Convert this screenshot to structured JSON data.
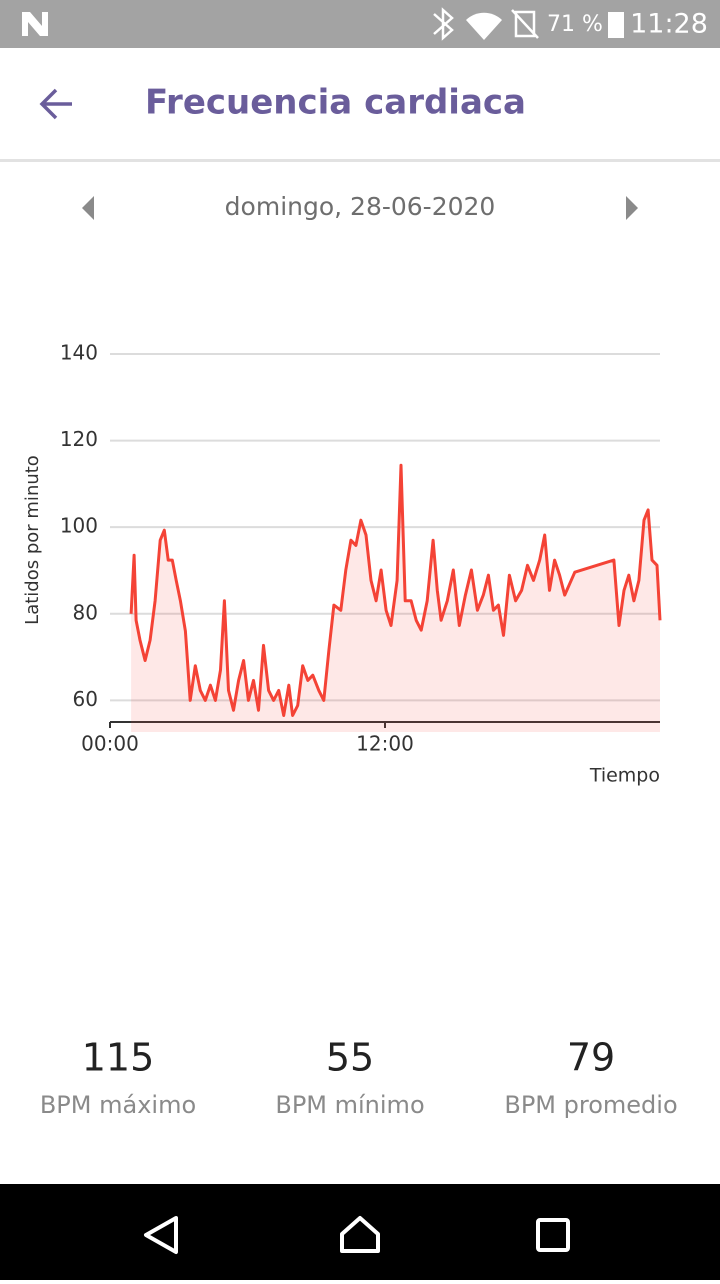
{
  "status_bar": {
    "battery": "71 %",
    "time": "11:28"
  },
  "header": {
    "title": "Frecuencia cardiaca"
  },
  "date_nav": {
    "date": "domingo, 28-06-2020"
  },
  "chart_data": {
    "type": "line",
    "y_label": "Latidos por minuto",
    "x_label": "Tiempo",
    "x": [
      0.92,
      1.05,
      1.14,
      1.31,
      1.53,
      1.75,
      1.97,
      2.19,
      2.37,
      2.54,
      2.72,
      2.89,
      3.07,
      3.29,
      3.5,
      3.72,
      3.94,
      4.16,
      4.38,
      4.6,
      4.82,
      4.99,
      5.17,
      5.39,
      5.61,
      5.83,
      6.04,
      6.26,
      6.48,
      6.7,
      6.92,
      7.14,
      7.36,
      7.58,
      7.8,
      7.97,
      8.19,
      8.41,
      8.63,
      8.85,
      9.11,
      9.33,
      9.55,
      9.77,
      10.07,
      10.29,
      10.51,
      10.73,
      10.95,
      11.17,
      11.39,
      11.61,
      11.83,
      12.05,
      12.26,
      12.53,
      12.7,
      12.88,
      13.14,
      13.36,
      13.58,
      13.84,
      14.1,
      14.28,
      14.45,
      14.72,
      14.98,
      15.24,
      15.51,
      15.77,
      16.03,
      16.29,
      16.51,
      16.73,
      16.95,
      17.17,
      17.43,
      17.7,
      17.96,
      18.22,
      18.48,
      18.75,
      18.97,
      19.18,
      19.4,
      19.62,
      19.84,
      20.28,
      21.99,
      22.21,
      22.43,
      22.64,
      22.86,
      23.08,
      23.3,
      23.48,
      23.65,
      23.87,
      24
    ],
    "series": [
      {
        "color": "#f44336",
        "values": [
          80,
          93.5,
          78.5,
          73.9,
          69.2,
          73.9,
          83,
          97,
          99.3,
          92.4,
          92.4,
          87.7,
          83,
          76,
          60,
          68,
          62.3,
          60,
          63.5,
          60,
          67,
          83,
          62.3,
          57.7,
          64.6,
          69.2,
          60,
          64.6,
          57.7,
          72.7,
          62.3,
          60,
          62.3,
          56.5,
          63.5,
          56.5,
          58.8,
          68,
          64.6,
          65.8,
          62.3,
          60,
          71.6,
          82,
          80.8,
          90.1,
          97,
          95.8,
          101.6,
          98.2,
          87.7,
          83,
          90.1,
          80.8,
          77.3,
          87.7,
          114.3,
          83,
          83,
          78.5,
          76.2,
          83,
          97,
          85.4,
          78.5,
          83,
          90.1,
          77.3,
          84.3,
          90.1,
          80.8,
          84.3,
          88.9,
          80.8,
          82,
          75,
          88.9,
          83,
          85.4,
          91.2,
          87.7,
          92.4,
          98.2,
          85.4,
          92.4,
          88.9,
          84.3,
          89.6,
          92.4,
          77.3,
          85.4,
          88.9,
          83,
          87.7,
          101.6,
          104,
          92.4,
          91.2,
          78.5
        ]
      }
    ],
    "xlim": [
      0,
      24
    ],
    "ylim": [
      55,
      140
    ],
    "xticks": [
      {
        "value": 0,
        "label": "00:00"
      },
      {
        "value": 12,
        "label": "12:00"
      }
    ],
    "yticks": [
      60,
      80,
      100,
      120,
      140
    ],
    "grid": true
  },
  "stats": [
    {
      "value": 115,
      "label": "BPM máximo"
    },
    {
      "value": 55,
      "label": "BPM mínimo"
    },
    {
      "value": 79,
      "label": "BPM promedio"
    }
  ]
}
